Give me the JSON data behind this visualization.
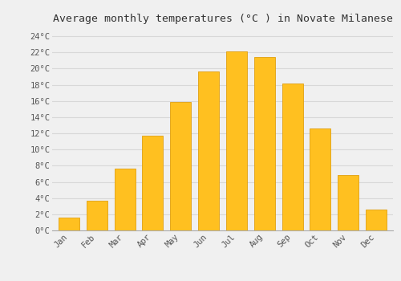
{
  "title": "Average monthly temperatures (°C ) in Novate Milanese",
  "months": [
    "Jan",
    "Feb",
    "Mar",
    "Apr",
    "May",
    "Jun",
    "Jul",
    "Aug",
    "Sep",
    "Oct",
    "Nov",
    "Dec"
  ],
  "temperatures": [
    1.6,
    3.7,
    7.6,
    11.7,
    15.9,
    19.6,
    22.1,
    21.4,
    18.2,
    12.6,
    6.8,
    2.6
  ],
  "bar_color": "#FFC020",
  "bar_edge_color": "#E0A010",
  "ylim": [
    0,
    25
  ],
  "yticks": [
    0,
    2,
    4,
    6,
    8,
    10,
    12,
    14,
    16,
    18,
    20,
    22,
    24
  ],
  "ytick_labels": [
    "0°C",
    "2°C",
    "4°C",
    "6°C",
    "8°C",
    "10°C",
    "12°C",
    "14°C",
    "16°C",
    "18°C",
    "20°C",
    "22°C",
    "24°C"
  ],
  "background_color": "#f0f0f0",
  "grid_color": "#d8d8d8",
  "title_fontsize": 9.5,
  "tick_fontsize": 7.5,
  "font_family": "monospace",
  "bar_width": 0.75,
  "figsize": [
    5.0,
    3.5
  ],
  "dpi": 100
}
